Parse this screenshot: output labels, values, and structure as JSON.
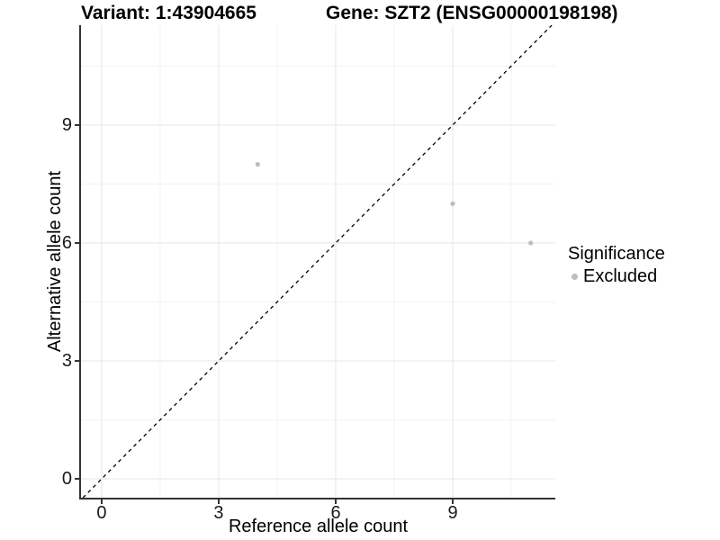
{
  "chart_data": {
    "type": "scatter",
    "titles": [
      "Variant: 1:43904665",
      "Gene: SZT2 (ENSG00000198198)"
    ],
    "xlabel": "Reference allele count",
    "ylabel": "Alternative allele count",
    "x_ticks": [
      0,
      3,
      6,
      9
    ],
    "y_ticks": [
      0,
      3,
      6,
      9
    ],
    "xlim": [
      -0.53,
      11.63
    ],
    "ylim": [
      -0.48,
      11.54
    ],
    "grid": "major+minor",
    "minor_tick_interval": 1.5,
    "reference_line": {
      "slope": 1,
      "intercept": 0,
      "style": "dashed",
      "color": "#000000"
    },
    "series": [
      {
        "name": "Excluded",
        "marker": "circle",
        "color": "#bdbdbd",
        "points": [
          [
            4,
            8
          ],
          [
            9,
            7
          ],
          [
            11,
            6
          ]
        ]
      }
    ],
    "legend": {
      "title": "Significance",
      "position": "right",
      "items": [
        {
          "label": "Excluded",
          "color": "#bdbdbd"
        }
      ]
    },
    "colors": {
      "background": "#ffffff",
      "grid_major": "#e6e6e6",
      "grid_minor": "#f3f3f3",
      "axis_line": "#333333",
      "tick_mark": "#333333",
      "tick_text": "#1a1a1a",
      "point": "#bdbdbd",
      "reference_line": "#000000"
    }
  }
}
